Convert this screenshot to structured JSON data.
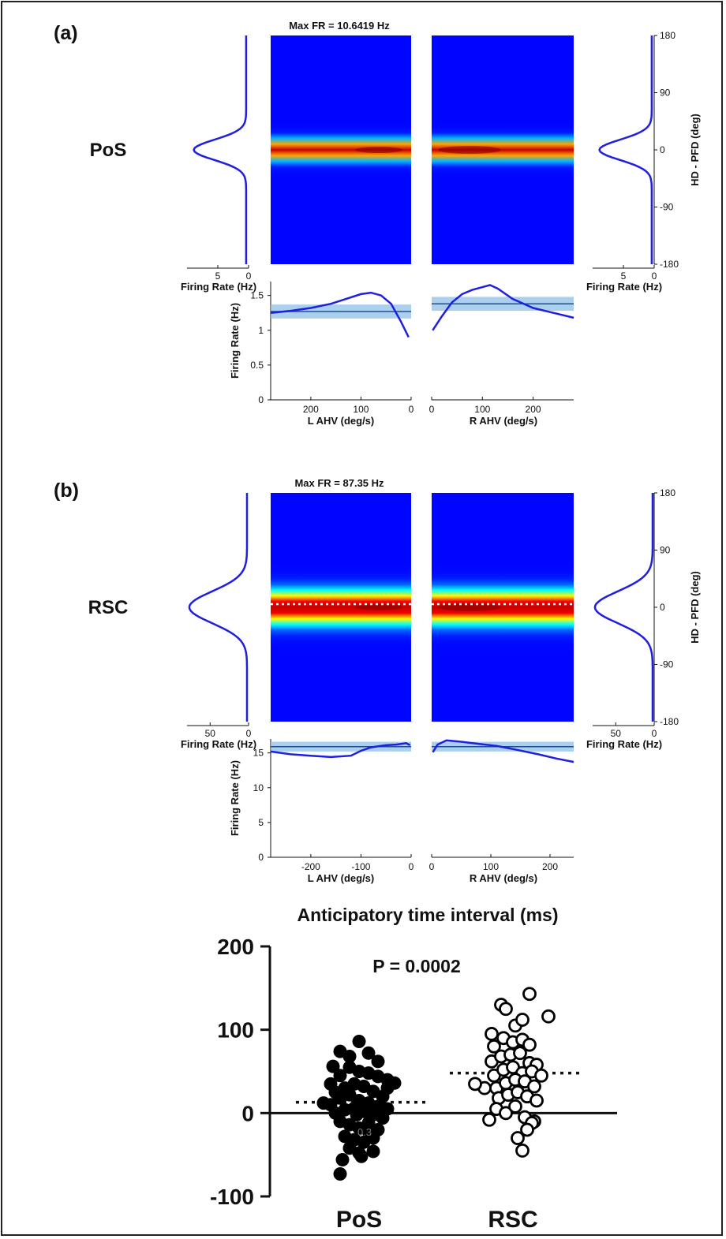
{
  "colors": {
    "curve": "#1f1fe0",
    "band": "#8ec0e8",
    "bandLine": "#1f4f8f",
    "heatBg": "#00008f"
  },
  "panels": [
    {
      "tag": "(a)",
      "region": "PoS",
      "maxfr": "Max FR = 10.6419 Hz",
      "hd_ticks": [
        "180",
        "90",
        "0",
        "-90",
        "-180"
      ],
      "hd_label": "HD - PFD (deg)",
      "side_ticks": [
        "5",
        "0"
      ],
      "side_max": 10,
      "side_tick_vals": [
        5,
        0
      ],
      "side_label": "Firing Rate (Hz)",
      "peak_fr": 8.5,
      "sigma_deg": 16,
      "baseline": 0.4,
      "dashed_line": false,
      "heat_sigma_deg": 10,
      "ahv_yticks": [
        "0",
        "0.5",
        "1",
        "1.5"
      ],
      "ahv_yvals": [
        0,
        0.5,
        1,
        1.5
      ],
      "ahv_ymax": 1.7,
      "ahv_ylabel": "Firing Rate (Hz)",
      "left_xticks": [
        "200",
        "100",
        "0"
      ],
      "left_xvals": [
        200,
        100,
        0
      ],
      "left_xmax": 280,
      "right_xticks": [
        "0",
        "100",
        "200"
      ],
      "right_xvals": [
        0,
        100,
        200
      ],
      "right_xmax": 280,
      "left_xlabel": "L AHV (deg/s)",
      "right_xlabel": "R AHV (deg/s)",
      "left_curve": [
        [
          280,
          1.25
        ],
        [
          240,
          1.28
        ],
        [
          200,
          1.32
        ],
        [
          160,
          1.38
        ],
        [
          130,
          1.45
        ],
        [
          100,
          1.52
        ],
        [
          80,
          1.54
        ],
        [
          60,
          1.5
        ],
        [
          40,
          1.38
        ],
        [
          20,
          1.12
        ],
        [
          5,
          0.9
        ]
      ],
      "right_curve": [
        [
          2,
          1.0
        ],
        [
          20,
          1.2
        ],
        [
          40,
          1.4
        ],
        [
          60,
          1.52
        ],
        [
          80,
          1.58
        ],
        [
          100,
          1.62
        ],
        [
          115,
          1.65
        ],
        [
          130,
          1.6
        ],
        [
          160,
          1.45
        ],
        [
          200,
          1.32
        ],
        [
          240,
          1.25
        ],
        [
          280,
          1.18
        ]
      ],
      "left_mean": 1.27,
      "left_band": 0.1,
      "right_mean": 1.38,
      "right_band": 0.1
    },
    {
      "tag": "(b)",
      "region": "RSC",
      "maxfr": "Max FR = 87.35 Hz",
      "hd_ticks": [
        "180",
        "90",
        "0",
        "-90",
        "-180"
      ],
      "hd_label": "HD - PFD (deg)",
      "side_ticks": [
        "50",
        "0"
      ],
      "side_max": 80,
      "side_tick_vals": [
        50,
        0
      ],
      "side_label": "Firing Rate (Hz)",
      "peak_fr": 75,
      "sigma_deg": 25,
      "baseline": 2,
      "dashed_line": true,
      "heat_sigma_deg": 17,
      "ahv_yticks": [
        "0",
        "5",
        "10",
        "15"
      ],
      "ahv_yvals": [
        0,
        5,
        10,
        15
      ],
      "ahv_ymax": 17,
      "ahv_ylabel": "Firing Rate (Hz)",
      "left_xticks": [
        "-200",
        "-100",
        "0"
      ],
      "left_xvals": [
        200,
        100,
        0
      ],
      "left_xmax": 280,
      "right_xticks": [
        "0",
        "100",
        "200"
      ],
      "right_xvals": [
        0,
        100,
        200
      ],
      "right_xmax": 240,
      "left_xlabel": "L AHV (deg/s)",
      "right_xlabel": "R AHV (deg/s)",
      "left_curve": [
        [
          280,
          15.2
        ],
        [
          240,
          14.8
        ],
        [
          200,
          14.6
        ],
        [
          160,
          14.4
        ],
        [
          120,
          14.6
        ],
        [
          100,
          15.3
        ],
        [
          80,
          15.8
        ],
        [
          50,
          16.1
        ],
        [
          30,
          16.2
        ],
        [
          10,
          16.4
        ],
        [
          2,
          16.1
        ]
      ],
      "right_curve": [
        [
          2,
          15.1
        ],
        [
          10,
          16.2
        ],
        [
          25,
          16.8
        ],
        [
          50,
          16.6
        ],
        [
          80,
          16.3
        ],
        [
          110,
          16.0
        ],
        [
          140,
          15.5
        ],
        [
          180,
          14.8
        ],
        [
          210,
          14.2
        ],
        [
          240,
          13.7
        ]
      ],
      "left_mean": 15.9,
      "left_band": 0.7,
      "right_mean": 15.9,
      "right_band": 0.7
    }
  ],
  "chart_data": {
    "type": "scatter",
    "title": "Anticipatory time interval (ms)",
    "annotation": "P = 0.0002",
    "categories": [
      "PoS",
      "RSC"
    ],
    "yticks": [
      "200",
      "100",
      "0",
      "-100"
    ],
    "ylim": [
      -100,
      200
    ],
    "stray_label": "0.3",
    "series": [
      {
        "name": "PoS",
        "marker": "filled",
        "mean": 13,
        "points": [
          [
            -0.75,
            12
          ],
          [
            -0.55,
            56
          ],
          [
            -0.4,
            74
          ],
          [
            -0.2,
            68
          ],
          [
            0.0,
            86
          ],
          [
            0.2,
            72
          ],
          [
            0.4,
            62
          ],
          [
            0.6,
            40
          ],
          [
            0.75,
            36
          ],
          [
            -0.6,
            35
          ],
          [
            -0.4,
            45
          ],
          [
            -0.2,
            55
          ],
          [
            0.0,
            50
          ],
          [
            0.2,
            48
          ],
          [
            0.4,
            44
          ],
          [
            0.6,
            30
          ],
          [
            -0.5,
            25
          ],
          [
            -0.3,
            30
          ],
          [
            -0.1,
            35
          ],
          [
            0.1,
            32
          ],
          [
            0.3,
            26
          ],
          [
            0.5,
            20
          ],
          [
            -0.6,
            10
          ],
          [
            -0.4,
            18
          ],
          [
            -0.2,
            22
          ],
          [
            0.0,
            15
          ],
          [
            0.2,
            12
          ],
          [
            0.4,
            8
          ],
          [
            0.6,
            5
          ],
          [
            -0.5,
            0
          ],
          [
            -0.3,
            4
          ],
          [
            -0.1,
            6
          ],
          [
            0.1,
            2
          ],
          [
            0.3,
            -2
          ],
          [
            0.5,
            -6
          ],
          [
            -0.4,
            -10
          ],
          [
            -0.2,
            -14
          ],
          [
            0.0,
            -18
          ],
          [
            0.2,
            -22
          ],
          [
            0.4,
            -20
          ],
          [
            -0.3,
            -28
          ],
          [
            -0.1,
            -32
          ],
          [
            0.1,
            -35
          ],
          [
            0.3,
            -30
          ],
          [
            -0.2,
            -42
          ],
          [
            0.0,
            -48
          ],
          [
            0.3,
            -46
          ],
          [
            -0.35,
            -56
          ],
          [
            0.05,
            -52
          ],
          [
            -0.4,
            -73
          ],
          [
            0.2,
            -12
          ],
          [
            -0.05,
            -2
          ]
        ]
      },
      {
        "name": "RSC",
        "marker": "open",
        "mean": 48,
        "points": [
          [
            -0.6,
            30
          ],
          [
            -0.8,
            35
          ],
          [
            -0.45,
            95
          ],
          [
            -0.25,
            130
          ],
          [
            -0.15,
            125
          ],
          [
            0.05,
            105
          ],
          [
            0.2,
            112
          ],
          [
            0.35,
            143
          ],
          [
            0.75,
            116
          ],
          [
            -0.4,
            80
          ],
          [
            -0.2,
            90
          ],
          [
            0.0,
            85
          ],
          [
            0.2,
            88
          ],
          [
            0.35,
            82
          ],
          [
            -0.45,
            62
          ],
          [
            -0.25,
            68
          ],
          [
            -0.05,
            70
          ],
          [
            0.15,
            72
          ],
          [
            0.35,
            60
          ],
          [
            0.5,
            58
          ],
          [
            -0.4,
            45
          ],
          [
            -0.2,
            52
          ],
          [
            0.0,
            55
          ],
          [
            0.2,
            48
          ],
          [
            0.4,
            50
          ],
          [
            0.6,
            45
          ],
          [
            -0.35,
            30
          ],
          [
            -0.15,
            36
          ],
          [
            0.05,
            40
          ],
          [
            0.25,
            38
          ],
          [
            0.45,
            32
          ],
          [
            -0.3,
            18
          ],
          [
            -0.1,
            22
          ],
          [
            0.1,
            25
          ],
          [
            0.3,
            20
          ],
          [
            0.5,
            15
          ],
          [
            -0.35,
            5
          ],
          [
            -0.15,
            0
          ],
          [
            0.05,
            8
          ],
          [
            0.25,
            -5
          ],
          [
            0.45,
            -10
          ],
          [
            -0.5,
            -8
          ],
          [
            0.1,
            -30
          ],
          [
            0.2,
            -45
          ],
          [
            0.4,
            -12
          ],
          [
            0.3,
            -20
          ]
        ]
      }
    ]
  }
}
